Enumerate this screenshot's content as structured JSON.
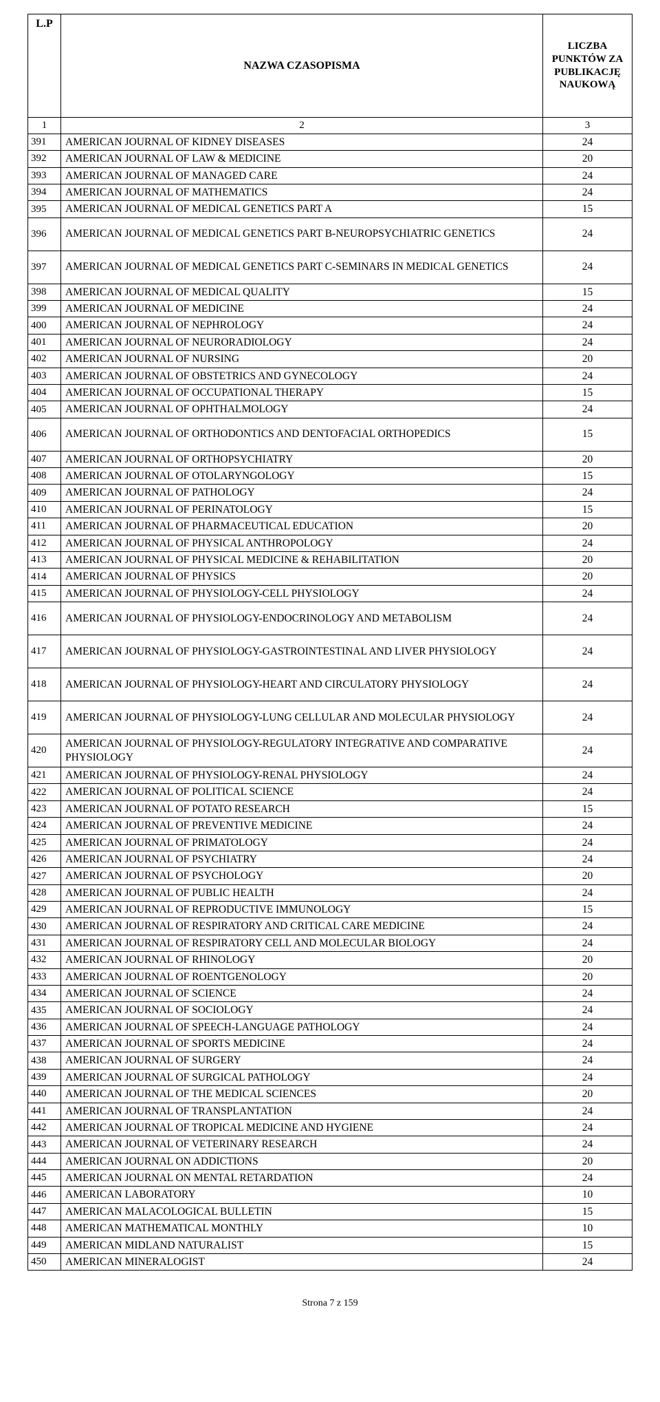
{
  "header": {
    "col1": "L.P",
    "col2": "NAZWA CZASOPISMA",
    "col3": "LICZBA PUNKTÓW ZA PUBLIKACJĘ NAUKOWĄ",
    "num1": "1",
    "num2": "2",
    "num3": "3"
  },
  "rows": [
    {
      "lp": "391",
      "name": "AMERICAN JOURNAL OF KIDNEY DISEASES",
      "pts": "24",
      "tall": false
    },
    {
      "lp": "392",
      "name": "AMERICAN JOURNAL OF LAW & MEDICINE",
      "pts": "20",
      "tall": false
    },
    {
      "lp": "393",
      "name": "AMERICAN JOURNAL OF MANAGED CARE",
      "pts": "24",
      "tall": false
    },
    {
      "lp": "394",
      "name": "AMERICAN JOURNAL OF MATHEMATICS",
      "pts": "24",
      "tall": false
    },
    {
      "lp": "395",
      "name": "AMERICAN JOURNAL OF MEDICAL GENETICS PART A",
      "pts": "15",
      "tall": false
    },
    {
      "lp": "396",
      "name": "AMERICAN JOURNAL OF MEDICAL GENETICS PART B-NEUROPSYCHIATRIC GENETICS",
      "pts": "24",
      "tall": true
    },
    {
      "lp": "397",
      "name": "AMERICAN JOURNAL OF MEDICAL GENETICS PART C-SEMINARS IN MEDICAL GENETICS",
      "pts": "24",
      "tall": true
    },
    {
      "lp": "398",
      "name": "AMERICAN JOURNAL OF MEDICAL QUALITY",
      "pts": "15",
      "tall": false
    },
    {
      "lp": "399",
      "name": "AMERICAN JOURNAL OF MEDICINE",
      "pts": "24",
      "tall": false
    },
    {
      "lp": "400",
      "name": "AMERICAN JOURNAL OF NEPHROLOGY",
      "pts": "24",
      "tall": false
    },
    {
      "lp": "401",
      "name": "AMERICAN JOURNAL OF NEURORADIOLOGY",
      "pts": "24",
      "tall": false
    },
    {
      "lp": "402",
      "name": "AMERICAN JOURNAL OF NURSING",
      "pts": "20",
      "tall": false
    },
    {
      "lp": "403",
      "name": "AMERICAN JOURNAL OF OBSTETRICS AND GYNECOLOGY",
      "pts": "24",
      "tall": false
    },
    {
      "lp": "404",
      "name": "AMERICAN JOURNAL OF OCCUPATIONAL THERAPY",
      "pts": "15",
      "tall": false
    },
    {
      "lp": "405",
      "name": "AMERICAN JOURNAL OF OPHTHALMOLOGY",
      "pts": "24",
      "tall": false
    },
    {
      "lp": "406",
      "name": "AMERICAN JOURNAL OF ORTHODONTICS AND DENTOFACIAL ORTHOPEDICS",
      "pts": "15",
      "tall": true
    },
    {
      "lp": "407",
      "name": "AMERICAN JOURNAL OF ORTHOPSYCHIATRY",
      "pts": "20",
      "tall": false
    },
    {
      "lp": "408",
      "name": "AMERICAN JOURNAL OF OTOLARYNGOLOGY",
      "pts": "15",
      "tall": false
    },
    {
      "lp": "409",
      "name": "AMERICAN JOURNAL OF PATHOLOGY",
      "pts": "24",
      "tall": false
    },
    {
      "lp": "410",
      "name": "AMERICAN JOURNAL OF PERINATOLOGY",
      "pts": "15",
      "tall": false
    },
    {
      "lp": "411",
      "name": "AMERICAN JOURNAL OF PHARMACEUTICAL EDUCATION",
      "pts": "20",
      "tall": false
    },
    {
      "lp": "412",
      "name": "AMERICAN JOURNAL OF PHYSICAL ANTHROPOLOGY",
      "pts": "24",
      "tall": false
    },
    {
      "lp": "413",
      "name": "AMERICAN JOURNAL OF PHYSICAL MEDICINE & REHABILITATION",
      "pts": "20",
      "tall": false
    },
    {
      "lp": "414",
      "name": "AMERICAN JOURNAL OF PHYSICS",
      "pts": "20",
      "tall": false
    },
    {
      "lp": "415",
      "name": "AMERICAN JOURNAL OF PHYSIOLOGY-CELL PHYSIOLOGY",
      "pts": "24",
      "tall": false
    },
    {
      "lp": "416",
      "name": "AMERICAN JOURNAL OF PHYSIOLOGY-ENDOCRINOLOGY AND METABOLISM",
      "pts": "24",
      "tall": true
    },
    {
      "lp": "417",
      "name": "AMERICAN JOURNAL OF PHYSIOLOGY-GASTROINTESTINAL AND LIVER PHYSIOLOGY",
      "pts": "24",
      "tall": true
    },
    {
      "lp": "418",
      "name": "AMERICAN JOURNAL OF PHYSIOLOGY-HEART AND CIRCULATORY PHYSIOLOGY",
      "pts": "24",
      "tall": true
    },
    {
      "lp": "419",
      "name": "AMERICAN JOURNAL OF PHYSIOLOGY-LUNG CELLULAR AND MOLECULAR PHYSIOLOGY",
      "pts": "24",
      "tall": true
    },
    {
      "lp": "420",
      "name": "AMERICAN JOURNAL OF PHYSIOLOGY-REGULATORY INTEGRATIVE AND COMPARATIVE PHYSIOLOGY",
      "pts": "24",
      "tall": true
    },
    {
      "lp": "421",
      "name": "AMERICAN JOURNAL OF PHYSIOLOGY-RENAL PHYSIOLOGY",
      "pts": "24",
      "tall": false
    },
    {
      "lp": "422",
      "name": "AMERICAN JOURNAL OF POLITICAL SCIENCE",
      "pts": "24",
      "tall": false
    },
    {
      "lp": "423",
      "name": "AMERICAN JOURNAL OF POTATO RESEARCH",
      "pts": "15",
      "tall": false
    },
    {
      "lp": "424",
      "name": "AMERICAN JOURNAL OF PREVENTIVE MEDICINE",
      "pts": "24",
      "tall": false
    },
    {
      "lp": "425",
      "name": "AMERICAN JOURNAL OF PRIMATOLOGY",
      "pts": "24",
      "tall": false
    },
    {
      "lp": "426",
      "name": "AMERICAN JOURNAL OF PSYCHIATRY",
      "pts": "24",
      "tall": false
    },
    {
      "lp": "427",
      "name": "AMERICAN JOURNAL OF PSYCHOLOGY",
      "pts": "20",
      "tall": false
    },
    {
      "lp": "428",
      "name": "AMERICAN JOURNAL OF PUBLIC HEALTH",
      "pts": "24",
      "tall": false
    },
    {
      "lp": "429",
      "name": "AMERICAN JOURNAL OF REPRODUCTIVE IMMUNOLOGY",
      "pts": "15",
      "tall": false
    },
    {
      "lp": "430",
      "name": "AMERICAN JOURNAL OF RESPIRATORY AND CRITICAL CARE MEDICINE",
      "pts": "24",
      "tall": false
    },
    {
      "lp": "431",
      "name": "AMERICAN JOURNAL OF RESPIRATORY CELL AND MOLECULAR BIOLOGY",
      "pts": "24",
      "tall": false
    },
    {
      "lp": "432",
      "name": "AMERICAN JOURNAL OF RHINOLOGY",
      "pts": "20",
      "tall": false
    },
    {
      "lp": "433",
      "name": "AMERICAN JOURNAL OF ROENTGENOLOGY",
      "pts": "20",
      "tall": false
    },
    {
      "lp": "434",
      "name": "AMERICAN JOURNAL OF SCIENCE",
      "pts": "24",
      "tall": false
    },
    {
      "lp": "435",
      "name": "AMERICAN JOURNAL OF SOCIOLOGY",
      "pts": "24",
      "tall": false
    },
    {
      "lp": "436",
      "name": "AMERICAN JOURNAL OF SPEECH-LANGUAGE PATHOLOGY",
      "pts": "24",
      "tall": false
    },
    {
      "lp": "437",
      "name": "AMERICAN JOURNAL OF SPORTS MEDICINE",
      "pts": "24",
      "tall": false
    },
    {
      "lp": "438",
      "name": "AMERICAN JOURNAL OF SURGERY",
      "pts": "24",
      "tall": false
    },
    {
      "lp": "439",
      "name": "AMERICAN JOURNAL OF SURGICAL PATHOLOGY",
      "pts": "24",
      "tall": false
    },
    {
      "lp": "440",
      "name": "AMERICAN JOURNAL OF THE MEDICAL SCIENCES",
      "pts": "20",
      "tall": false
    },
    {
      "lp": "441",
      "name": "AMERICAN JOURNAL OF TRANSPLANTATION",
      "pts": "24",
      "tall": false
    },
    {
      "lp": "442",
      "name": "AMERICAN JOURNAL OF TROPICAL MEDICINE AND HYGIENE",
      "pts": "24",
      "tall": false
    },
    {
      "lp": "443",
      "name": "AMERICAN JOURNAL OF VETERINARY RESEARCH",
      "pts": "24",
      "tall": false
    },
    {
      "lp": "444",
      "name": "AMERICAN JOURNAL ON ADDICTIONS",
      "pts": "20",
      "tall": false
    },
    {
      "lp": "445",
      "name": "AMERICAN JOURNAL ON MENTAL RETARDATION",
      "pts": "24",
      "tall": false
    },
    {
      "lp": "446",
      "name": "AMERICAN LABORATORY",
      "pts": "10",
      "tall": false
    },
    {
      "lp": "447",
      "name": "AMERICAN MALACOLOGICAL BULLETIN",
      "pts": "15",
      "tall": false
    },
    {
      "lp": "448",
      "name": "AMERICAN MATHEMATICAL MONTHLY",
      "pts": "10",
      "tall": false
    },
    {
      "lp": "449",
      "name": "AMERICAN MIDLAND NATURALIST",
      "pts": "15",
      "tall": false
    },
    {
      "lp": "450",
      "name": "AMERICAN MINERALOGIST",
      "pts": "24",
      "tall": false
    }
  ],
  "footer": "Strona 7 z 159"
}
